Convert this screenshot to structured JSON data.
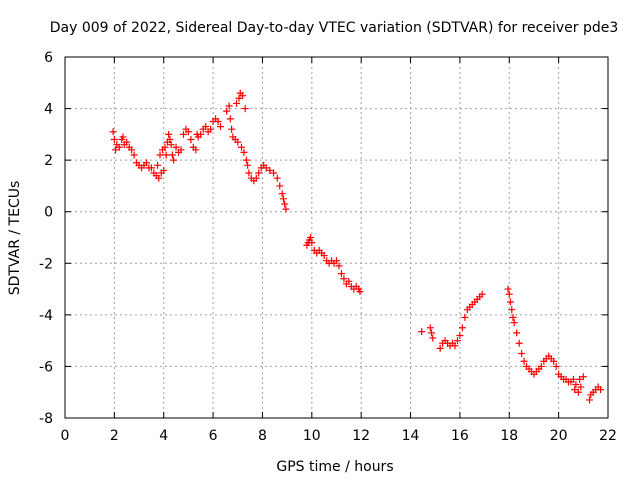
{
  "chart_data": {
    "type": "scatter",
    "title": "Day 009 of 2022, Sidereal Day-to-day VTEC variation (SDTVAR) for receiver pde3",
    "xlabel": "GPS time / hours",
    "ylabel": "SDTVAR / TECUs",
    "xlim": [
      0,
      22
    ],
    "ylim": [
      -8,
      6
    ],
    "xticks": [
      0,
      2,
      4,
      6,
      8,
      10,
      12,
      14,
      16,
      18,
      20,
      22
    ],
    "yticks": [
      -8,
      -6,
      -4,
      -2,
      0,
      2,
      4,
      6
    ],
    "grid": true,
    "marker": "+",
    "marker_color": "#ff0000",
    "series": [
      {
        "name": "SDTVAR",
        "points": [
          [
            1.95,
            3.1
          ],
          [
            2.0,
            2.8
          ],
          [
            2.05,
            2.4
          ],
          [
            2.1,
            2.6
          ],
          [
            2.2,
            2.5
          ],
          [
            2.3,
            2.8
          ],
          [
            2.35,
            2.9
          ],
          [
            2.4,
            2.6
          ],
          [
            2.5,
            2.7
          ],
          [
            2.6,
            2.5
          ],
          [
            2.7,
            2.4
          ],
          [
            2.8,
            2.2
          ],
          [
            2.9,
            1.9
          ],
          [
            3.0,
            1.8
          ],
          [
            3.1,
            1.7
          ],
          [
            3.2,
            1.8
          ],
          [
            3.3,
            1.9
          ],
          [
            3.4,
            1.7
          ],
          [
            3.5,
            1.7
          ],
          [
            3.6,
            1.5
          ],
          [
            3.7,
            1.4
          ],
          [
            3.75,
            1.8
          ],
          [
            3.8,
            1.3
          ],
          [
            3.85,
            2.2
          ],
          [
            3.9,
            1.5
          ],
          [
            3.95,
            2.4
          ],
          [
            4.0,
            1.6
          ],
          [
            4.05,
            2.5
          ],
          [
            4.1,
            2.2
          ],
          [
            4.15,
            2.7
          ],
          [
            4.2,
            3.0
          ],
          [
            4.25,
            2.8
          ],
          [
            4.3,
            2.6
          ],
          [
            4.35,
            2.2
          ],
          [
            4.4,
            2.0
          ],
          [
            4.5,
            2.5
          ],
          [
            4.6,
            2.3
          ],
          [
            4.7,
            2.4
          ],
          [
            4.8,
            3.0
          ],
          [
            4.9,
            3.2
          ],
          [
            5.0,
            3.1
          ],
          [
            5.1,
            2.8
          ],
          [
            5.2,
            2.5
          ],
          [
            5.3,
            2.4
          ],
          [
            5.35,
            3.0
          ],
          [
            5.4,
            2.9
          ],
          [
            5.5,
            3.0
          ],
          [
            5.6,
            3.2
          ],
          [
            5.7,
            3.3
          ],
          [
            5.8,
            3.1
          ],
          [
            5.9,
            3.2
          ],
          [
            6.0,
            3.5
          ],
          [
            6.1,
            3.6
          ],
          [
            6.2,
            3.5
          ],
          [
            6.3,
            3.3
          ],
          [
            6.55,
            3.9
          ],
          [
            6.65,
            4.1
          ],
          [
            6.7,
            3.6
          ],
          [
            6.75,
            3.2
          ],
          [
            6.8,
            2.9
          ],
          [
            6.9,
            2.8
          ],
          [
            6.95,
            4.2
          ],
          [
            7.0,
            2.7
          ],
          [
            7.05,
            4.4
          ],
          [
            7.1,
            4.6
          ],
          [
            7.15,
            2.5
          ],
          [
            7.2,
            4.5
          ],
          [
            7.25,
            2.3
          ],
          [
            7.3,
            4.0
          ],
          [
            7.35,
            2.0
          ],
          [
            7.4,
            1.8
          ],
          [
            7.45,
            1.5
          ],
          [
            7.55,
            1.3
          ],
          [
            7.65,
            1.2
          ],
          [
            7.75,
            1.3
          ],
          [
            7.85,
            1.5
          ],
          [
            7.95,
            1.7
          ],
          [
            8.05,
            1.8
          ],
          [
            8.15,
            1.7
          ],
          [
            8.3,
            1.6
          ],
          [
            8.45,
            1.5
          ],
          [
            8.6,
            1.3
          ],
          [
            8.7,
            1.0
          ],
          [
            8.8,
            0.7
          ],
          [
            8.85,
            0.5
          ],
          [
            8.9,
            0.3
          ],
          [
            8.95,
            0.1
          ],
          [
            9.8,
            -1.3
          ],
          [
            9.85,
            -1.2
          ],
          [
            9.9,
            -1.1
          ],
          [
            9.95,
            -1.0
          ],
          [
            10.0,
            -1.2
          ],
          [
            10.1,
            -1.5
          ],
          [
            10.2,
            -1.6
          ],
          [
            10.3,
            -1.5
          ],
          [
            10.4,
            -1.6
          ],
          [
            10.5,
            -1.7
          ],
          [
            10.6,
            -1.9
          ],
          [
            10.7,
            -2.0
          ],
          [
            10.8,
            -1.9
          ],
          [
            10.9,
            -2.0
          ],
          [
            11.0,
            -1.9
          ],
          [
            11.1,
            -2.1
          ],
          [
            11.2,
            -2.4
          ],
          [
            11.3,
            -2.6
          ],
          [
            11.4,
            -2.8
          ],
          [
            11.5,
            -2.7
          ],
          [
            11.6,
            -2.9
          ],
          [
            11.7,
            -3.0
          ],
          [
            11.8,
            -2.9
          ],
          [
            11.9,
            -3.0
          ],
          [
            11.95,
            -3.1
          ],
          [
            14.45,
            -4.65
          ],
          [
            14.8,
            -4.5
          ],
          [
            14.85,
            -4.7
          ],
          [
            14.9,
            -4.9
          ],
          [
            15.2,
            -5.3
          ],
          [
            15.3,
            -5.1
          ],
          [
            15.4,
            -5.0
          ],
          [
            15.5,
            -5.1
          ],
          [
            15.6,
            -5.2
          ],
          [
            15.7,
            -5.1
          ],
          [
            15.8,
            -5.2
          ],
          [
            15.9,
            -5.0
          ],
          [
            16.0,
            -4.8
          ],
          [
            16.1,
            -4.5
          ],
          [
            16.2,
            -4.1
          ],
          [
            16.3,
            -3.8
          ],
          [
            16.4,
            -3.7
          ],
          [
            16.5,
            -3.6
          ],
          [
            16.6,
            -3.5
          ],
          [
            16.7,
            -3.4
          ],
          [
            16.8,
            -3.3
          ],
          [
            16.9,
            -3.2
          ],
          [
            17.95,
            -3.0
          ],
          [
            18.0,
            -3.2
          ],
          [
            18.05,
            -3.5
          ],
          [
            18.1,
            -3.8
          ],
          [
            18.15,
            -4.1
          ],
          [
            18.2,
            -4.3
          ],
          [
            18.3,
            -4.7
          ],
          [
            18.4,
            -5.1
          ],
          [
            18.5,
            -5.5
          ],
          [
            18.6,
            -5.8
          ],
          [
            18.7,
            -6.0
          ],
          [
            18.8,
            -6.1
          ],
          [
            18.9,
            -6.2
          ],
          [
            19.0,
            -6.3
          ],
          [
            19.1,
            -6.2
          ],
          [
            19.2,
            -6.1
          ],
          [
            19.3,
            -6.0
          ],
          [
            19.4,
            -5.8
          ],
          [
            19.5,
            -5.7
          ],
          [
            19.6,
            -5.6
          ],
          [
            19.7,
            -5.7
          ],
          [
            19.8,
            -5.8
          ],
          [
            19.9,
            -6.0
          ],
          [
            20.0,
            -6.3
          ],
          [
            20.1,
            -6.4
          ],
          [
            20.2,
            -6.5
          ],
          [
            20.3,
            -6.5
          ],
          [
            20.4,
            -6.6
          ],
          [
            20.5,
            -6.6
          ],
          [
            20.6,
            -6.5
          ],
          [
            20.65,
            -6.9
          ],
          [
            20.7,
            -6.7
          ],
          [
            20.8,
            -7.0
          ],
          [
            20.85,
            -6.5
          ],
          [
            20.9,
            -6.8
          ],
          [
            21.0,
            -6.4
          ],
          [
            21.25,
            -7.3
          ],
          [
            21.3,
            -7.1
          ],
          [
            21.4,
            -7.0
          ],
          [
            21.5,
            -6.9
          ],
          [
            21.6,
            -6.8
          ],
          [
            21.7,
            -6.9
          ]
        ]
      }
    ]
  }
}
